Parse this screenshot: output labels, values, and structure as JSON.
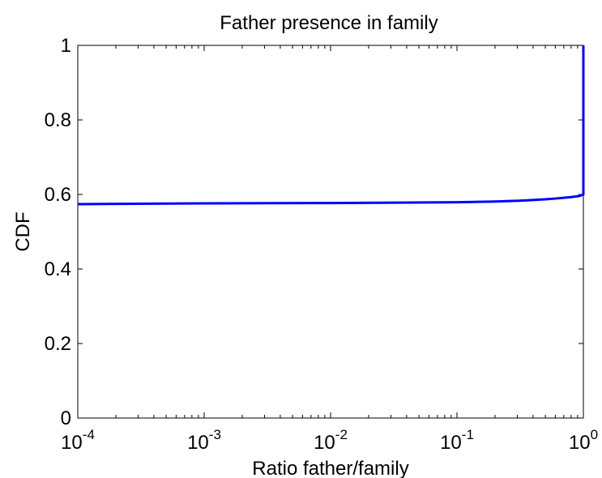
{
  "chart_data": {
    "type": "line",
    "title": "Father presence in family",
    "xlabel": "Ratio father/family",
    "ylabel": "CDF",
    "xscale": "log",
    "xlim": [
      0.0001,
      1
    ],
    "ylim": [
      0,
      1
    ],
    "grid": false,
    "legend": "none",
    "x_ticks": [
      {
        "value": 0.0001,
        "base": "10",
        "exp": "-4"
      },
      {
        "value": 0.001,
        "base": "10",
        "exp": "-3"
      },
      {
        "value": 0.01,
        "base": "10",
        "exp": "-2"
      },
      {
        "value": 0.1,
        "base": "10",
        "exp": "-1"
      },
      {
        "value": 1,
        "base": "10",
        "exp": "0"
      }
    ],
    "y_ticks": [
      {
        "value": 0,
        "label": "0"
      },
      {
        "value": 0.2,
        "label": "0.2"
      },
      {
        "value": 0.4,
        "label": "0.4"
      },
      {
        "value": 0.6,
        "label": "0.6"
      },
      {
        "value": 0.8,
        "label": "0.8"
      },
      {
        "value": 1,
        "label": "1"
      }
    ],
    "series": [
      {
        "color": "#0000ff",
        "x": [
          0.0001,
          0.001,
          0.01,
          0.1,
          0.2,
          0.3,
          0.4,
          0.5,
          0.6,
          0.7,
          0.8,
          0.9,
          0.95,
          0.99,
          1,
          1
        ],
        "y": [
          0.574,
          0.576,
          0.577,
          0.579,
          0.581,
          0.583,
          0.585,
          0.587,
          0.589,
          0.591,
          0.593,
          0.595,
          0.597,
          0.599,
          0.6,
          1.0
        ]
      }
    ]
  }
}
